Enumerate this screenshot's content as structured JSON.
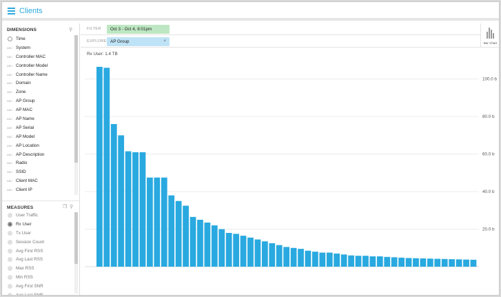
{
  "app": {
    "title": "Clients",
    "menu_icon": "hamburger-menu-icon"
  },
  "sidebar": {
    "dimensions_header": "DIMENSIONS",
    "dimensions": [
      {
        "label": "Time",
        "icon": "clock-icon"
      },
      {
        "label": "System",
        "icon": "text-type-icon"
      },
      {
        "label": "Controller MAC",
        "icon": "text-type-icon"
      },
      {
        "label": "Controller Model",
        "icon": "text-type-icon"
      },
      {
        "label": "Controller Name",
        "icon": "text-type-icon"
      },
      {
        "label": "Domain",
        "icon": "text-type-icon"
      },
      {
        "label": "Zone",
        "icon": "text-type-icon"
      },
      {
        "label": "AP Group",
        "icon": "text-type-icon"
      },
      {
        "label": "AP MAC",
        "icon": "text-type-icon"
      },
      {
        "label": "AP Name",
        "icon": "text-type-icon"
      },
      {
        "label": "AP Serial",
        "icon": "text-type-icon"
      },
      {
        "label": "AP Model",
        "icon": "text-type-icon"
      },
      {
        "label": "AP Location",
        "icon": "text-type-icon"
      },
      {
        "label": "AP Description",
        "icon": "text-type-icon"
      },
      {
        "label": "Radio",
        "icon": "text-type-icon"
      },
      {
        "label": "SSID",
        "icon": "text-type-icon"
      },
      {
        "label": "Client MAC",
        "icon": "text-type-icon"
      },
      {
        "label": "Client IP",
        "icon": "text-type-icon"
      }
    ],
    "measures_header": "MEASURES",
    "measures": [
      {
        "label": "User Traffic",
        "selected": false
      },
      {
        "label": "Rx User",
        "selected": true
      },
      {
        "label": "Tx User",
        "selected": false
      },
      {
        "label": "Session Count",
        "selected": false
      },
      {
        "label": "Avg First RSS",
        "selected": false
      },
      {
        "label": "Avg Last RSS",
        "selected": false
      },
      {
        "label": "Max RSS",
        "selected": false
      },
      {
        "label": "Min RSS",
        "selected": false
      },
      {
        "label": "Avg First SNR",
        "selected": false
      },
      {
        "label": "Avg Last SNR",
        "selected": false
      }
    ]
  },
  "controls": {
    "filter_key": "FILTER",
    "filter_value": "Oct 3 - Oct 4, 8:01pm",
    "explore_key": "EXPLORE",
    "explore_value": "AP Group",
    "explore_clear": "×",
    "viz_label": "Bar Chart",
    "colors": {
      "filter": "#bde7c2",
      "explore": "#bfe3f6"
    }
  },
  "chart_data": {
    "type": "bar",
    "title": "Rx User: 1.4 TB",
    "ylim": [
      0,
      112
    ],
    "y_ticks": [
      {
        "value": 20,
        "label": "20.0 b"
      },
      {
        "value": 40,
        "label": "40.0 b"
      },
      {
        "value": 60,
        "label": "60.0 b"
      },
      {
        "value": 80,
        "label": "80.0 b"
      },
      {
        "value": 100,
        "label": "100.0 b"
      }
    ],
    "y_axis_position": "right",
    "grid": true,
    "bar_color": "#29a9e0",
    "values": [
      106.5,
      106,
      76,
      70,
      61.5,
      61,
      61,
      47.5,
      47.5,
      47.5,
      38,
      35,
      32.5,
      26.5,
      25,
      23.5,
      22,
      20,
      18,
      17.5,
      16.5,
      15.5,
      14.5,
      13.5,
      12.5,
      11.5,
      10.5,
      10,
      9.5,
      8.5,
      8,
      7.5,
      7.5,
      7,
      6.5,
      6,
      5.8,
      5.8,
      5.5,
      5.5,
      5.2,
      5,
      4.8,
      4.6,
      4.5,
      4.4,
      4.3,
      4.2,
      4.1,
      4,
      3.9,
      3.8,
      3.7
    ]
  }
}
